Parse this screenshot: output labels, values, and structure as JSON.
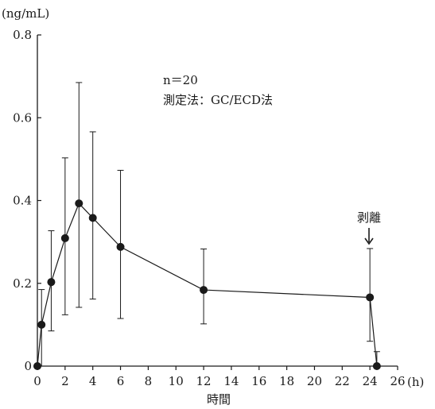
{
  "chart_data": {
    "type": "line",
    "ylabel": "(ng/mL)",
    "xlabel": "時間",
    "x_unit": "(h)",
    "xlim": [
      0,
      26
    ],
    "ylim": [
      0,
      0.8
    ],
    "x_ticks": [
      0,
      2,
      4,
      6,
      8,
      10,
      12,
      14,
      16,
      18,
      20,
      22,
      24,
      26
    ],
    "y_ticks": [
      "0",
      "0.2",
      "0.4",
      "0.6",
      "0.8"
    ],
    "annotations": [
      "n＝20",
      "測定法：GC/ECD法"
    ],
    "arrow_label": "剥離",
    "arrow_x": 24,
    "grid": false,
    "series": [
      {
        "points": [
          {
            "x": 0,
            "y": 0,
            "err_low": 0,
            "err_high": 0
          },
          {
            "x": 0.3,
            "y": 0.1,
            "err_low": 0.0,
            "err_high": 0.185
          },
          {
            "x": 1,
            "y": 0.203,
            "err_low": 0.085,
            "err_high": 0.327
          },
          {
            "x": 2,
            "y": 0.309,
            "err_low": 0.124,
            "err_high": 0.503
          },
          {
            "x": 3,
            "y": 0.393,
            "err_low": 0.142,
            "err_high": 0.685
          },
          {
            "x": 4,
            "y": 0.358,
            "err_low": 0.162,
            "err_high": 0.566
          },
          {
            "x": 6,
            "y": 0.288,
            "err_low": 0.115,
            "err_high": 0.473
          },
          {
            "x": 12,
            "y": 0.184,
            "err_low": 0.102,
            "err_high": 0.283
          },
          {
            "x": 24,
            "y": 0.166,
            "err_low": 0.06,
            "err_high": 0.284
          },
          {
            "x": 24.5,
            "y": 0.0,
            "err_low": 0.0,
            "err_high": 0.035
          }
        ]
      }
    ]
  }
}
